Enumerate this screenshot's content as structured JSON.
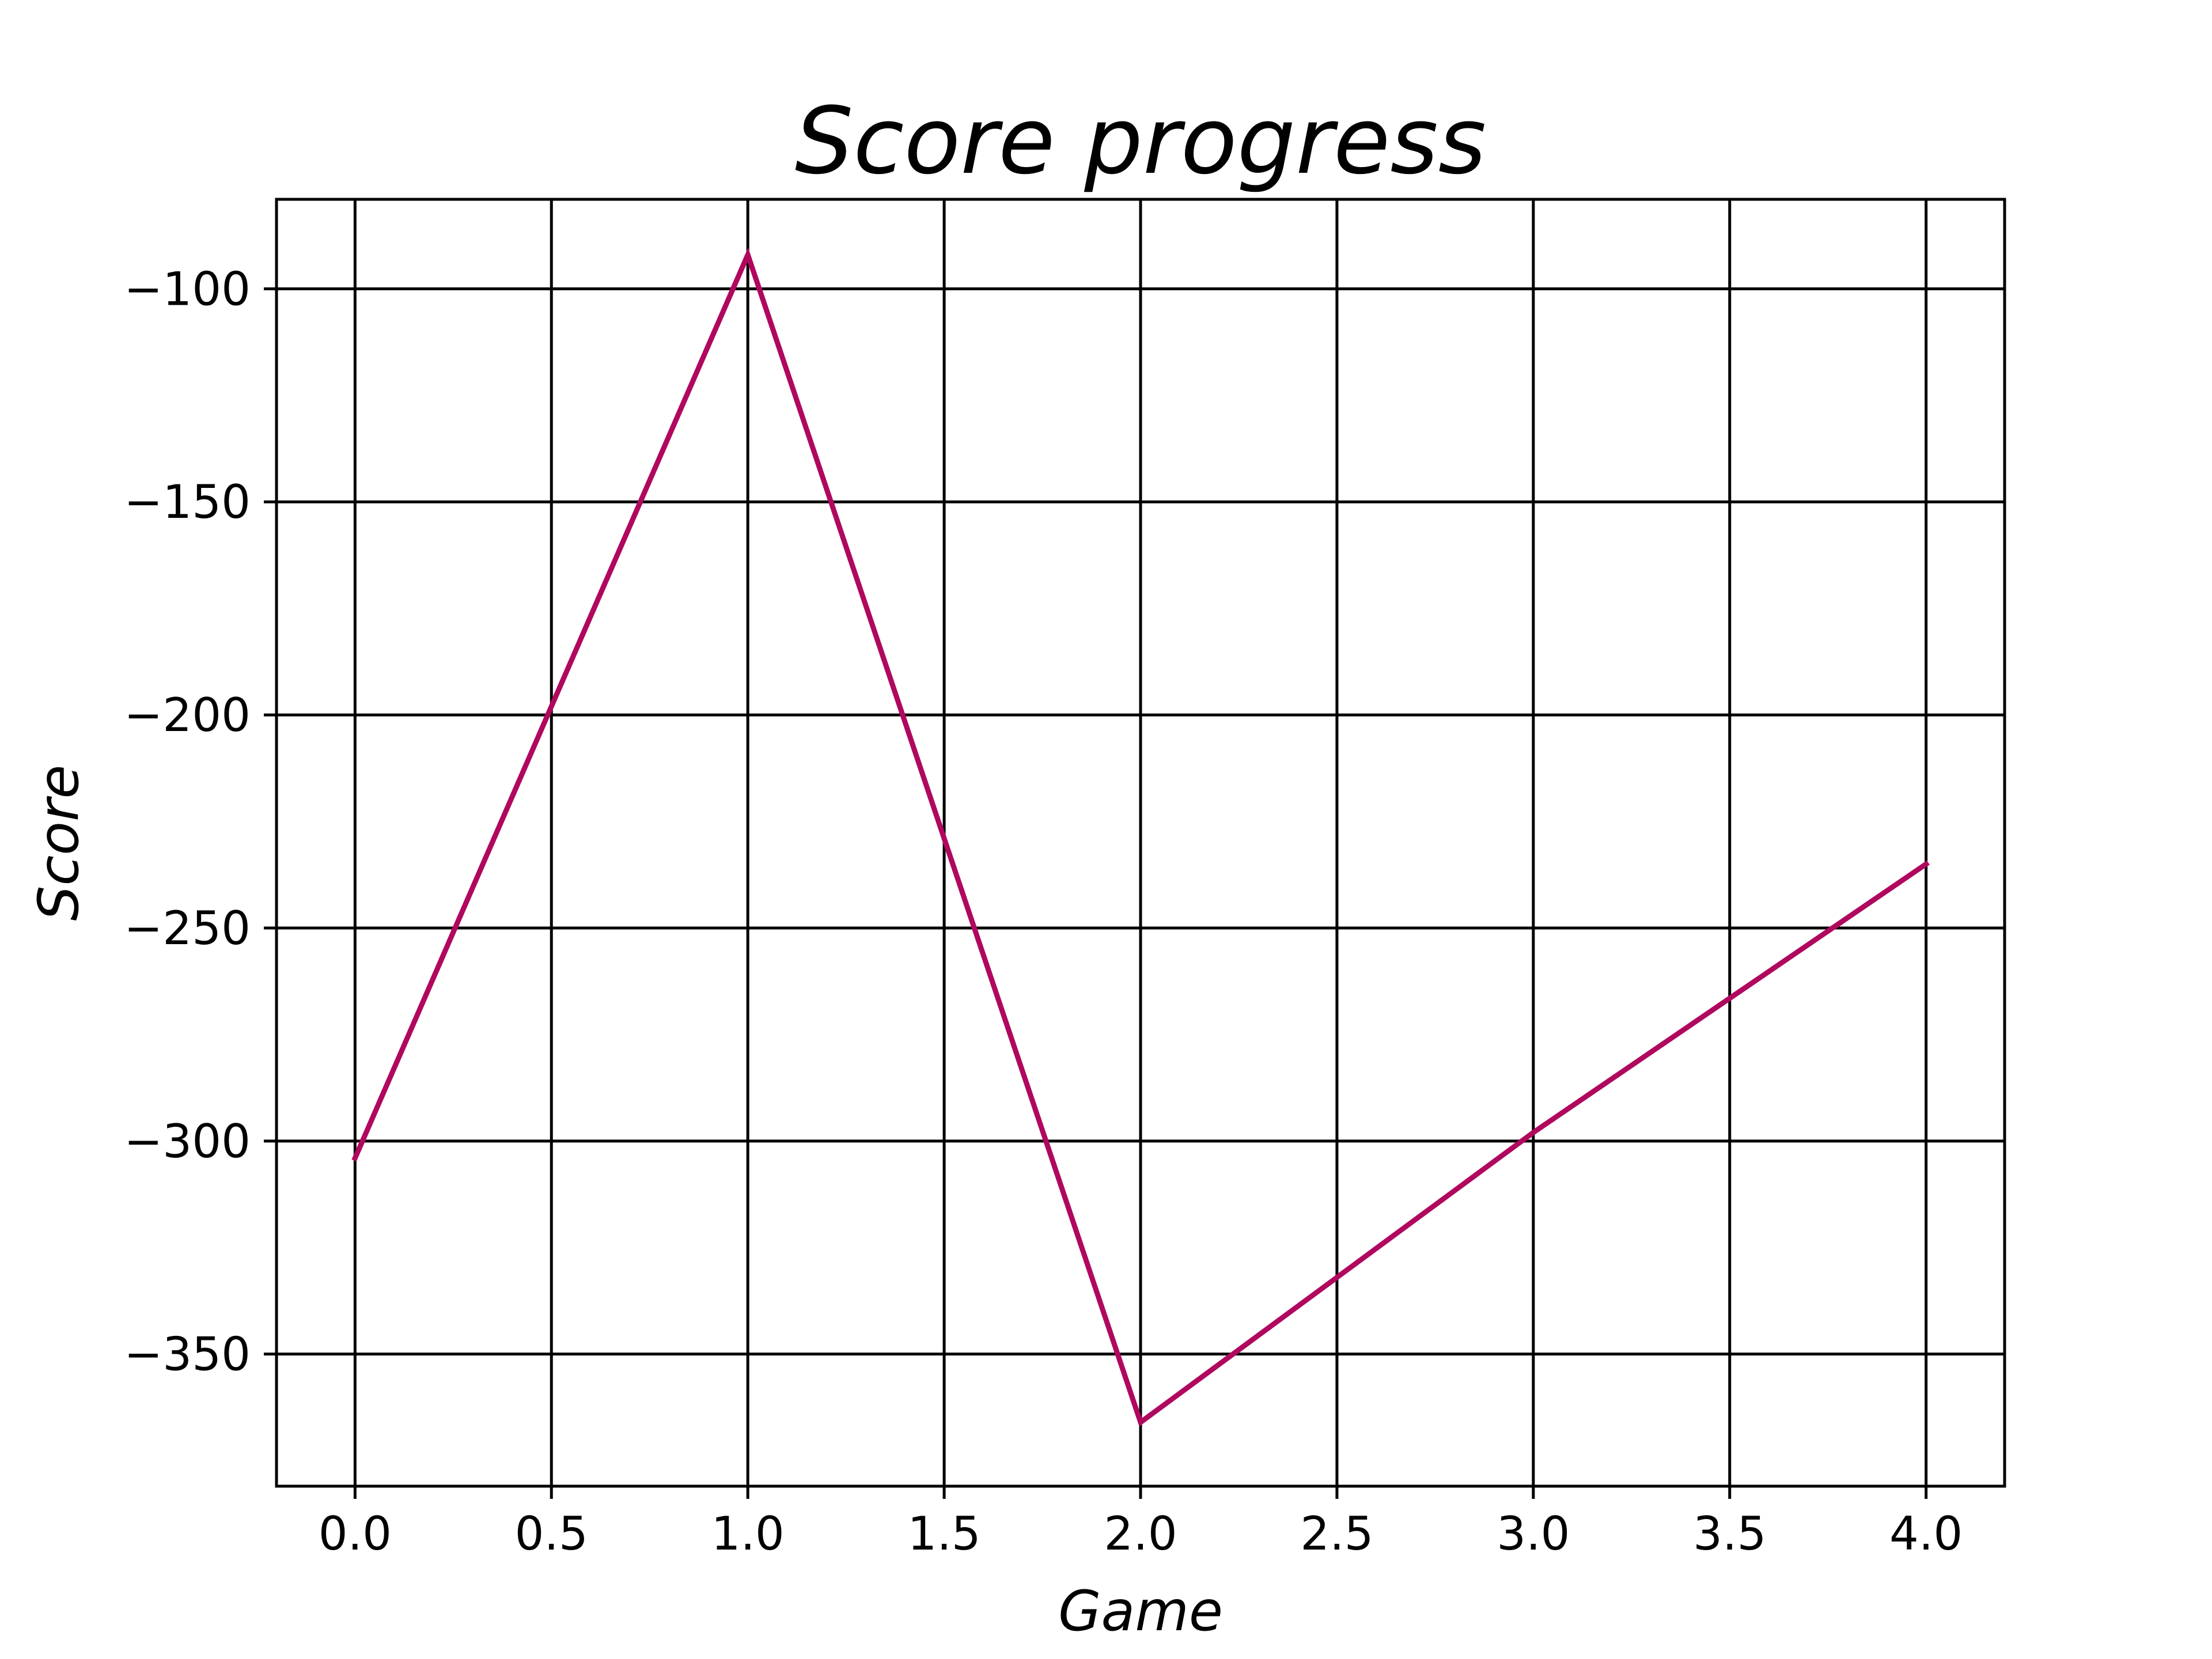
{
  "chart_data": {
    "type": "line",
    "title": "Score progress",
    "xlabel": "Game",
    "ylabel": "Score",
    "x": [
      0,
      1,
      2,
      3,
      4
    ],
    "series": [
      {
        "values": [
          -304,
          -92,
          -366,
          -298,
          -235
        ]
      }
    ],
    "xlim": [
      -0.2,
      4.2
    ],
    "ylim": [
      -381,
      -79
    ],
    "xticks": [
      0.0,
      0.5,
      1.0,
      1.5,
      2.0,
      2.5,
      3.0,
      3.5,
      4.0
    ],
    "xtick_labels": [
      "0.0",
      "0.5",
      "1.0",
      "1.5",
      "2.0",
      "2.5",
      "3.0",
      "3.5",
      "4.0"
    ],
    "yticks": [
      -100,
      -150,
      -200,
      -250,
      -300,
      -350
    ],
    "ytick_labels": [
      "−100",
      "−150",
      "−200",
      "−250",
      "−300",
      "−350"
    ],
    "grid": true,
    "line_color": "#b0085e",
    "grid_color": "#000000"
  }
}
